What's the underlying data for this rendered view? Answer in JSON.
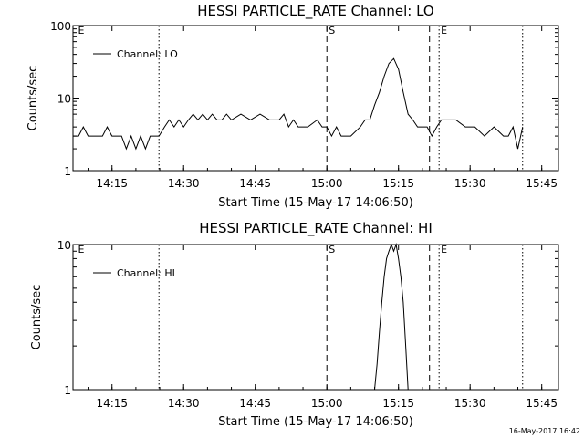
{
  "footer": "16-May-2017 16:42",
  "chart_data": [
    {
      "type": "line",
      "title": "HESSI PARTICLE_RATE Channel: LO",
      "xlabel": "Start Time (15-May-17 14:06:50)",
      "ylabel": "Counts/sec",
      "ylog": true,
      "ylim": [
        1,
        100
      ],
      "xlim": [
        "14:06:50",
        "15:48:30"
      ],
      "xticks": [
        "14:15",
        "14:30",
        "14:45",
        "15:00",
        "15:15",
        "15:30",
        "15:45"
      ],
      "yticks": [
        "1",
        "10",
        "100"
      ],
      "legend_entry": "Channel: LO",
      "legend_position": "top-left",
      "markers": [
        {
          "label": "E",
          "time": "14:07:30",
          "style": "none"
        },
        {
          "label": "",
          "time": "14:24:50",
          "style": "dotted"
        },
        {
          "label": "S",
          "time": "15:00:00",
          "style": "dashed"
        },
        {
          "label": "",
          "time": "15:21:30",
          "style": "dashed"
        },
        {
          "label": "E",
          "time": "15:23:30",
          "style": "dotted"
        },
        {
          "label": "",
          "time": "15:41:00",
          "style": "dotted"
        }
      ],
      "series": [
        {
          "name": "Channel: LO",
          "x": [
            "14:06:50",
            "14:08:00",
            "14:09:00",
            "14:10:00",
            "14:11:00",
            "14:12:00",
            "14:13:00",
            "14:14:00",
            "14:15:00",
            "14:16:00",
            "14:17:00",
            "14:18:00",
            "14:19:00",
            "14:20:00",
            "14:21:00",
            "14:22:00",
            "14:23:00",
            "14:24:00",
            "14:24:50",
            "14:26:00",
            "14:27:00",
            "14:28:00",
            "14:29:00",
            "14:30:00",
            "14:31:00",
            "14:32:00",
            "14:33:00",
            "14:34:00",
            "14:35:00",
            "14:36:00",
            "14:37:00",
            "14:38:00",
            "14:39:00",
            "14:40:00",
            "14:42:00",
            "14:44:00",
            "14:46:00",
            "14:48:00",
            "14:50:00",
            "14:51:00",
            "14:52:00",
            "14:53:00",
            "14:54:00",
            "14:56:00",
            "14:58:00",
            "14:59:00",
            "15:00:00",
            "15:01:00",
            "15:02:00",
            "15:03:00",
            "15:05:00",
            "15:07:00",
            "15:08:00",
            "15:09:00",
            "15:10:00",
            "15:11:00",
            "15:12:00",
            "15:13:00",
            "15:14:00",
            "15:15:00",
            "15:16:00",
            "15:17:00",
            "15:18:00",
            "15:19:00",
            "15:20:00",
            "15:21:00",
            "15:22:00",
            "15:23:00",
            "15:24:00",
            "15:25:00",
            "15:27:00",
            "15:29:00",
            "15:31:00",
            "15:33:00",
            "15:35:00",
            "15:37:00",
            "15:38:00",
            "15:39:00",
            "15:40:00",
            "15:41:00"
          ],
          "values": [
            3,
            3,
            4,
            3,
            3,
            3,
            3,
            4,
            3,
            3,
            3,
            2,
            3,
            2,
            3,
            2,
            3,
            3,
            3,
            4,
            5,
            4,
            5,
            4,
            5,
            6,
            5,
            6,
            5,
            6,
            5,
            5,
            6,
            5,
            6,
            5,
            6,
            5,
            5,
            6,
            4,
            5,
            4,
            4,
            5,
            4,
            4,
            3,
            4,
            3,
            3,
            4,
            5,
            5,
            8,
            12,
            20,
            30,
            35,
            25,
            12,
            6,
            5,
            4,
            4,
            4,
            3,
            4,
            5,
            5,
            5,
            4,
            4,
            3,
            4,
            3,
            3,
            4,
            2,
            4
          ]
        }
      ]
    },
    {
      "type": "line",
      "title": "HESSI PARTICLE_RATE Channel: HI",
      "xlabel": "Start Time (15-May-17 14:06:50)",
      "ylabel": "Counts/sec",
      "ylog": true,
      "ylim": [
        1,
        10
      ],
      "xlim": [
        "14:06:50",
        "15:48:30"
      ],
      "xticks": [
        "14:15",
        "14:30",
        "14:45",
        "15:00",
        "15:15",
        "15:30",
        "15:45"
      ],
      "yticks": [
        "1",
        "10"
      ],
      "legend_entry": "Channel: HI",
      "legend_position": "top-left",
      "markers": [
        {
          "label": "E",
          "time": "14:07:30",
          "style": "none"
        },
        {
          "label": "",
          "time": "14:24:50",
          "style": "dotted"
        },
        {
          "label": "S",
          "time": "15:00:00",
          "style": "dashed"
        },
        {
          "label": "",
          "time": "15:21:30",
          "style": "dashed"
        },
        {
          "label": "E",
          "time": "15:23:30",
          "style": "dotted"
        },
        {
          "label": "",
          "time": "15:41:00",
          "style": "dotted"
        }
      ],
      "series": [
        {
          "name": "Channel: HI",
          "x": [
            "15:10:00",
            "15:10:30",
            "15:11:00",
            "15:11:30",
            "15:12:00",
            "15:12:30",
            "15:13:00",
            "15:13:30",
            "15:14:00",
            "15:14:30",
            "15:15:00",
            "15:15:30",
            "15:16:00",
            "15:16:30",
            "15:17:00"
          ],
          "values": [
            1,
            1.5,
            2.5,
            4,
            6,
            8,
            9,
            10,
            9,
            10,
            8,
            6,
            4,
            2,
            1
          ]
        }
      ]
    }
  ]
}
